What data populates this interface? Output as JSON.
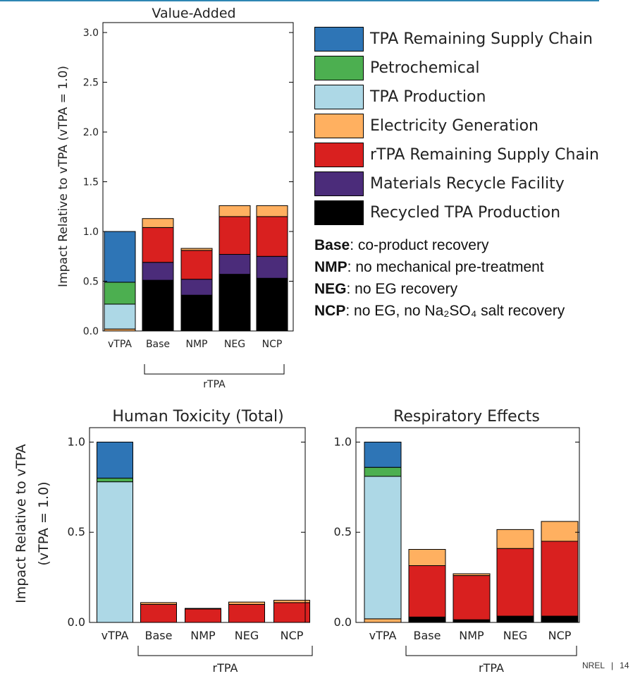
{
  "legend": [
    {
      "name": "TPA Remaining Supply Chain",
      "color": "#2e75b6"
    },
    {
      "name": "Petrochemical",
      "color": "#4caf50"
    },
    {
      "name": "TPA Production",
      "color": "#add8e6"
    },
    {
      "name": "Electricity Generation",
      "color": "#ffb060"
    },
    {
      "name": "rTPA Remaining Supply Chain",
      "color": "#d9201f"
    },
    {
      "name": "Materials Recycle Facility",
      "color": "#4b2c7a"
    },
    {
      "name": "Recycled TPA Production",
      "color": "#000000"
    }
  ],
  "notes": [
    {
      "term": "Base",
      "text": ": co-product recovery"
    },
    {
      "term": "NMP",
      "text": ": no mechanical pre-treatment"
    },
    {
      "term": "NEG",
      "text": ": no EG recovery"
    },
    {
      "term": "NCP",
      "text": ": no EG, no Na₂SO₄ salt recovery"
    }
  ],
  "footer": {
    "org": "NREL",
    "separator": "|",
    "page": "14"
  },
  "chart_data": [
    {
      "type": "bar",
      "stacked": true,
      "title": "Value-Added",
      "ylabel": "Impact Relative to vTPA (vTPA = 1.0)",
      "ylim": [
        0,
        3.1
      ],
      "yticks": [
        "0.0",
        "0.5",
        "1.0",
        "1.5",
        "2.0",
        "2.5",
        "3.0"
      ],
      "categories": [
        "vTPA",
        "Base",
        "NMP",
        "NEG",
        "NCP"
      ],
      "group_label": "rTPA",
      "series": [
        {
          "name": "Electricity Generation",
          "values": [
            0.02,
            0,
            0,
            0,
            0
          ]
        },
        {
          "name": "TPA Production",
          "values": [
            0.25,
            0,
            0,
            0,
            0
          ]
        },
        {
          "name": "Petrochemical",
          "values": [
            0.22,
            0,
            0,
            0,
            0
          ]
        },
        {
          "name": "TPA Remaining Supply Chain",
          "values": [
            0.51,
            0,
            0,
            0,
            0
          ]
        },
        {
          "name": "Recycled TPA Production",
          "values": [
            0,
            0.51,
            0.36,
            0.57,
            0.53
          ]
        },
        {
          "name": "Materials Recycle Facility",
          "values": [
            0,
            0.18,
            0.16,
            0.2,
            0.22
          ]
        },
        {
          "name": "rTPA Remaining Supply Chain",
          "values": [
            0,
            0.35,
            0.29,
            0.38,
            0.4
          ]
        },
        {
          "name": "Electricity Generation",
          "values": [
            0,
            0.09,
            0.02,
            0.11,
            0.11
          ]
        }
      ]
    },
    {
      "type": "bar",
      "stacked": true,
      "title": "Human Toxicity (Total)",
      "ylabel": "Impact Relative to vTPA (vTPA = 1.0)",
      "ylim": [
        0,
        1.08
      ],
      "yticks": [
        "0.0",
        "0.5",
        "1.0"
      ],
      "categories": [
        "vTPA",
        "Base",
        "NMP",
        "NEG",
        "NCP"
      ],
      "group_label": "rTPA",
      "series": [
        {
          "name": "Electricity Generation",
          "values": [
            0,
            0,
            0,
            0,
            0
          ]
        },
        {
          "name": "TPA Production",
          "values": [
            0.78,
            0,
            0,
            0,
            0
          ]
        },
        {
          "name": "Petrochemical",
          "values": [
            0.02,
            0,
            0,
            0,
            0
          ]
        },
        {
          "name": "TPA Remaining Supply Chain",
          "values": [
            0.2,
            0,
            0,
            0,
            0
          ]
        },
        {
          "name": "Recycled TPA Production",
          "values": [
            0,
            0,
            0,
            0,
            0
          ]
        },
        {
          "name": "Materials Recycle Facility",
          "values": [
            0,
            0,
            0,
            0,
            0
          ]
        },
        {
          "name": "rTPA Remaining Supply Chain",
          "values": [
            0,
            0.1,
            0.075,
            0.1,
            0.11
          ]
        },
        {
          "name": "Electricity Generation",
          "values": [
            0,
            0.01,
            0.003,
            0.013,
            0.013
          ]
        }
      ]
    },
    {
      "type": "bar",
      "stacked": true,
      "title": "Respiratory Effects",
      "ylabel": "",
      "ylim": [
        0,
        1.08
      ],
      "yticks": [
        "0.0",
        "0.5",
        "1.0"
      ],
      "categories": [
        "vTPA",
        "Base",
        "NMP",
        "NEG",
        "NCP"
      ],
      "group_label": "rTPA",
      "series": [
        {
          "name": "Electricity Generation",
          "values": [
            0.02,
            0,
            0,
            0,
            0
          ]
        },
        {
          "name": "TPA Production",
          "values": [
            0.79,
            0,
            0,
            0,
            0
          ]
        },
        {
          "name": "Petrochemical",
          "values": [
            0.05,
            0,
            0,
            0,
            0
          ]
        },
        {
          "name": "TPA Remaining Supply Chain",
          "values": [
            0.14,
            0,
            0,
            0,
            0
          ]
        },
        {
          "name": "Recycled TPA Production",
          "values": [
            0,
            0.03,
            0.015,
            0.035,
            0.035
          ]
        },
        {
          "name": "Materials Recycle Facility",
          "values": [
            0,
            0,
            0,
            0,
            0
          ]
        },
        {
          "name": "rTPA Remaining Supply Chain",
          "values": [
            0,
            0.285,
            0.245,
            0.375,
            0.415
          ]
        },
        {
          "name": "Electricity Generation",
          "values": [
            0,
            0.09,
            0.01,
            0.105,
            0.11
          ]
        }
      ]
    }
  ]
}
